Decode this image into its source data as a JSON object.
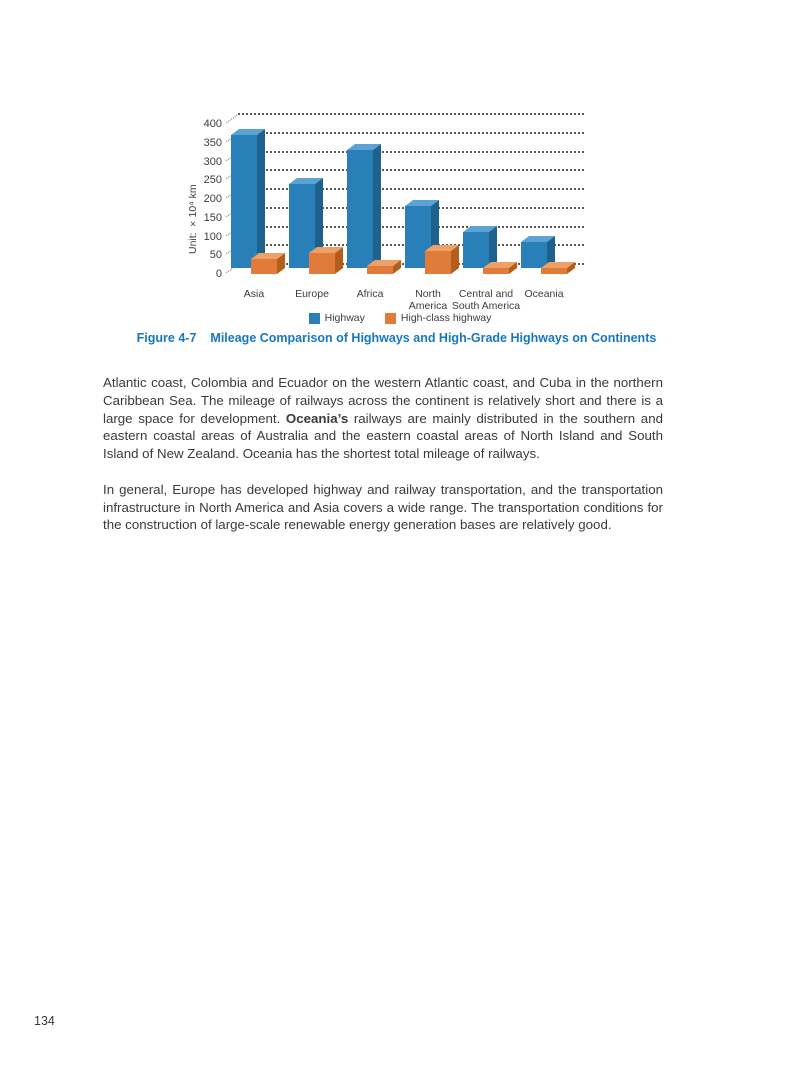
{
  "figure": {
    "caption_label": "Figure 4-7",
    "caption_title": "Mileage Comparison of Highways and High-Grade Highways on Continents",
    "caption_color": "#1778c0"
  },
  "chart_data": {
    "type": "bar",
    "variant": "3d-column",
    "title": "",
    "xlabel": "",
    "ylabel": "Unit: ×10⁴ km",
    "unit_label": "Unit: ×10⁴ km",
    "categories": [
      "Asia",
      "Europe",
      "Africa",
      "North\nAmerica",
      "Central and\nSouth America",
      "Oceania"
    ],
    "series": [
      {
        "name": "Highway",
        "color": "#2980b9",
        "color_top": "#5ba3d4",
        "color_side": "#1f618d",
        "values": [
          355,
          225,
          315,
          165,
          95,
          70
        ]
      },
      {
        "name": "High-class highway",
        "color": "#e07b39",
        "color_top": "#eca169",
        "color_side": "#b35f1b",
        "values": [
          40,
          55,
          20,
          60,
          15,
          15
        ]
      }
    ],
    "ylim": [
      0,
      400
    ],
    "yticks": [
      0,
      50,
      100,
      150,
      200,
      250,
      300,
      350,
      400
    ],
    "grid": "dotted-horizontal",
    "legend_position": "bottom"
  },
  "body": {
    "paragraph1": {
      "before": "Atlantic coast, Colombia and Ecuador on the western Atlantic coast, and Cuba in the northern Caribbean Sea. The mileage of railways across the continent is relatively short and there is a large space for development. ",
      "bold": "Oceania’s",
      "after": " railways are mainly distributed in the southern and eastern coastal areas of Australia and the eastern coastal areas of North Island and South Island of New Zealand. Oceania has the shortest total mileage of railways."
    },
    "paragraph2": "In general, Europe has developed highway and railway transportation, and the transportation infrastructure in North America and Asia covers a wide range. The transportation conditions for the construction of large-scale renewable energy generation bases are relatively good."
  },
  "page_number": "134"
}
